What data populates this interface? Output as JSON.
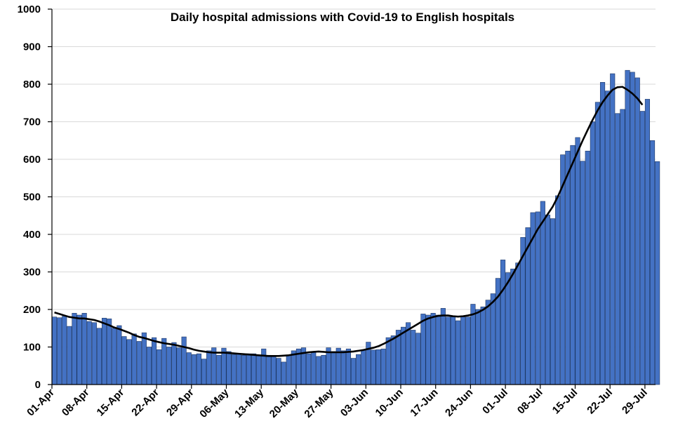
{
  "chart_data": {
    "type": "bar",
    "title": "Daily hospital admissions with Covid-19 to English hospitals",
    "xlabel": "",
    "ylabel": "",
    "ylim": [
      0,
      1000
    ],
    "yticks": [
      0,
      100,
      200,
      300,
      400,
      500,
      600,
      700,
      800,
      900,
      1000
    ],
    "x_tick_labels": [
      "01-Apr",
      "08-Apr",
      "15-Apr",
      "22-Apr",
      "29-Apr",
      "06-May",
      "13-May",
      "20-May",
      "27-May",
      "03-Jun",
      "10-Jun",
      "17-Jun",
      "24-Jun",
      "01-Jul",
      "08-Jul",
      "15-Jul",
      "22-Jul",
      "29-Jul"
    ],
    "x_tick_interval_days": 7,
    "start_date": "01-Apr",
    "grid": true,
    "legend": "none",
    "series": [
      {
        "name": "Daily admissions",
        "kind": "bar",
        "color": "#4472c4",
        "values": [
          180,
          178,
          182,
          155,
          190,
          185,
          190,
          168,
          165,
          150,
          177,
          175,
          150,
          157,
          128,
          120,
          135,
          115,
          138,
          100,
          125,
          93,
          123,
          100,
          112,
          98,
          127,
          85,
          80,
          82,
          68,
          90,
          98,
          78,
          97,
          88,
          80,
          82,
          78,
          82,
          82,
          78,
          95,
          78,
          75,
          70,
          60,
          78,
          90,
          95,
          98,
          82,
          88,
          75,
          78,
          98,
          88,
          97,
          90,
          95,
          70,
          80,
          92,
          113,
          92,
          93,
          95,
          125,
          130,
          145,
          153,
          165,
          145,
          137,
          188,
          185,
          190,
          185,
          203,
          180,
          180,
          170,
          180,
          180,
          214,
          200,
          207,
          225,
          242,
          283,
          332,
          298,
          308,
          324,
          392,
          418,
          458,
          460,
          488,
          452,
          442,
          503,
          612,
          622,
          637,
          658,
          595,
          622,
          700,
          752,
          805,
          782,
          828,
          722,
          733,
          837,
          832,
          817,
          728,
          760,
          650,
          594
        ],
        "seven_day_average": [
          192,
          188,
          184,
          180,
          178,
          176,
          176,
          174,
          172,
          168,
          163,
          158,
          152,
          148,
          143,
          138,
          132,
          127,
          124,
          120,
          116,
          113,
          110,
          108,
          106,
          103,
          100,
          97,
          93,
          90,
          88,
          86,
          85,
          85,
          85,
          84,
          83,
          82,
          81,
          80,
          79,
          78,
          77,
          76,
          76,
          76,
          77,
          78,
          80,
          82,
          84,
          86,
          87,
          88,
          87,
          86,
          86,
          86,
          86,
          87,
          88,
          90,
          92,
          95,
          98,
          102,
          108,
          115,
          122,
          130,
          138,
          146,
          154,
          162,
          170,
          176,
          180,
          183,
          184,
          184,
          182,
          181,
          182,
          184,
          187,
          192,
          199,
          208,
          220,
          234,
          252,
          272,
          294,
          318,
          342,
          366,
          390,
          414,
          434,
          454,
          474,
          500,
          530,
          560,
          590,
          620,
          650,
          678,
          705,
          730,
          752,
          770,
          785,
          792,
          793,
          785,
          775,
          762,
          745
        ]
      }
    ]
  }
}
